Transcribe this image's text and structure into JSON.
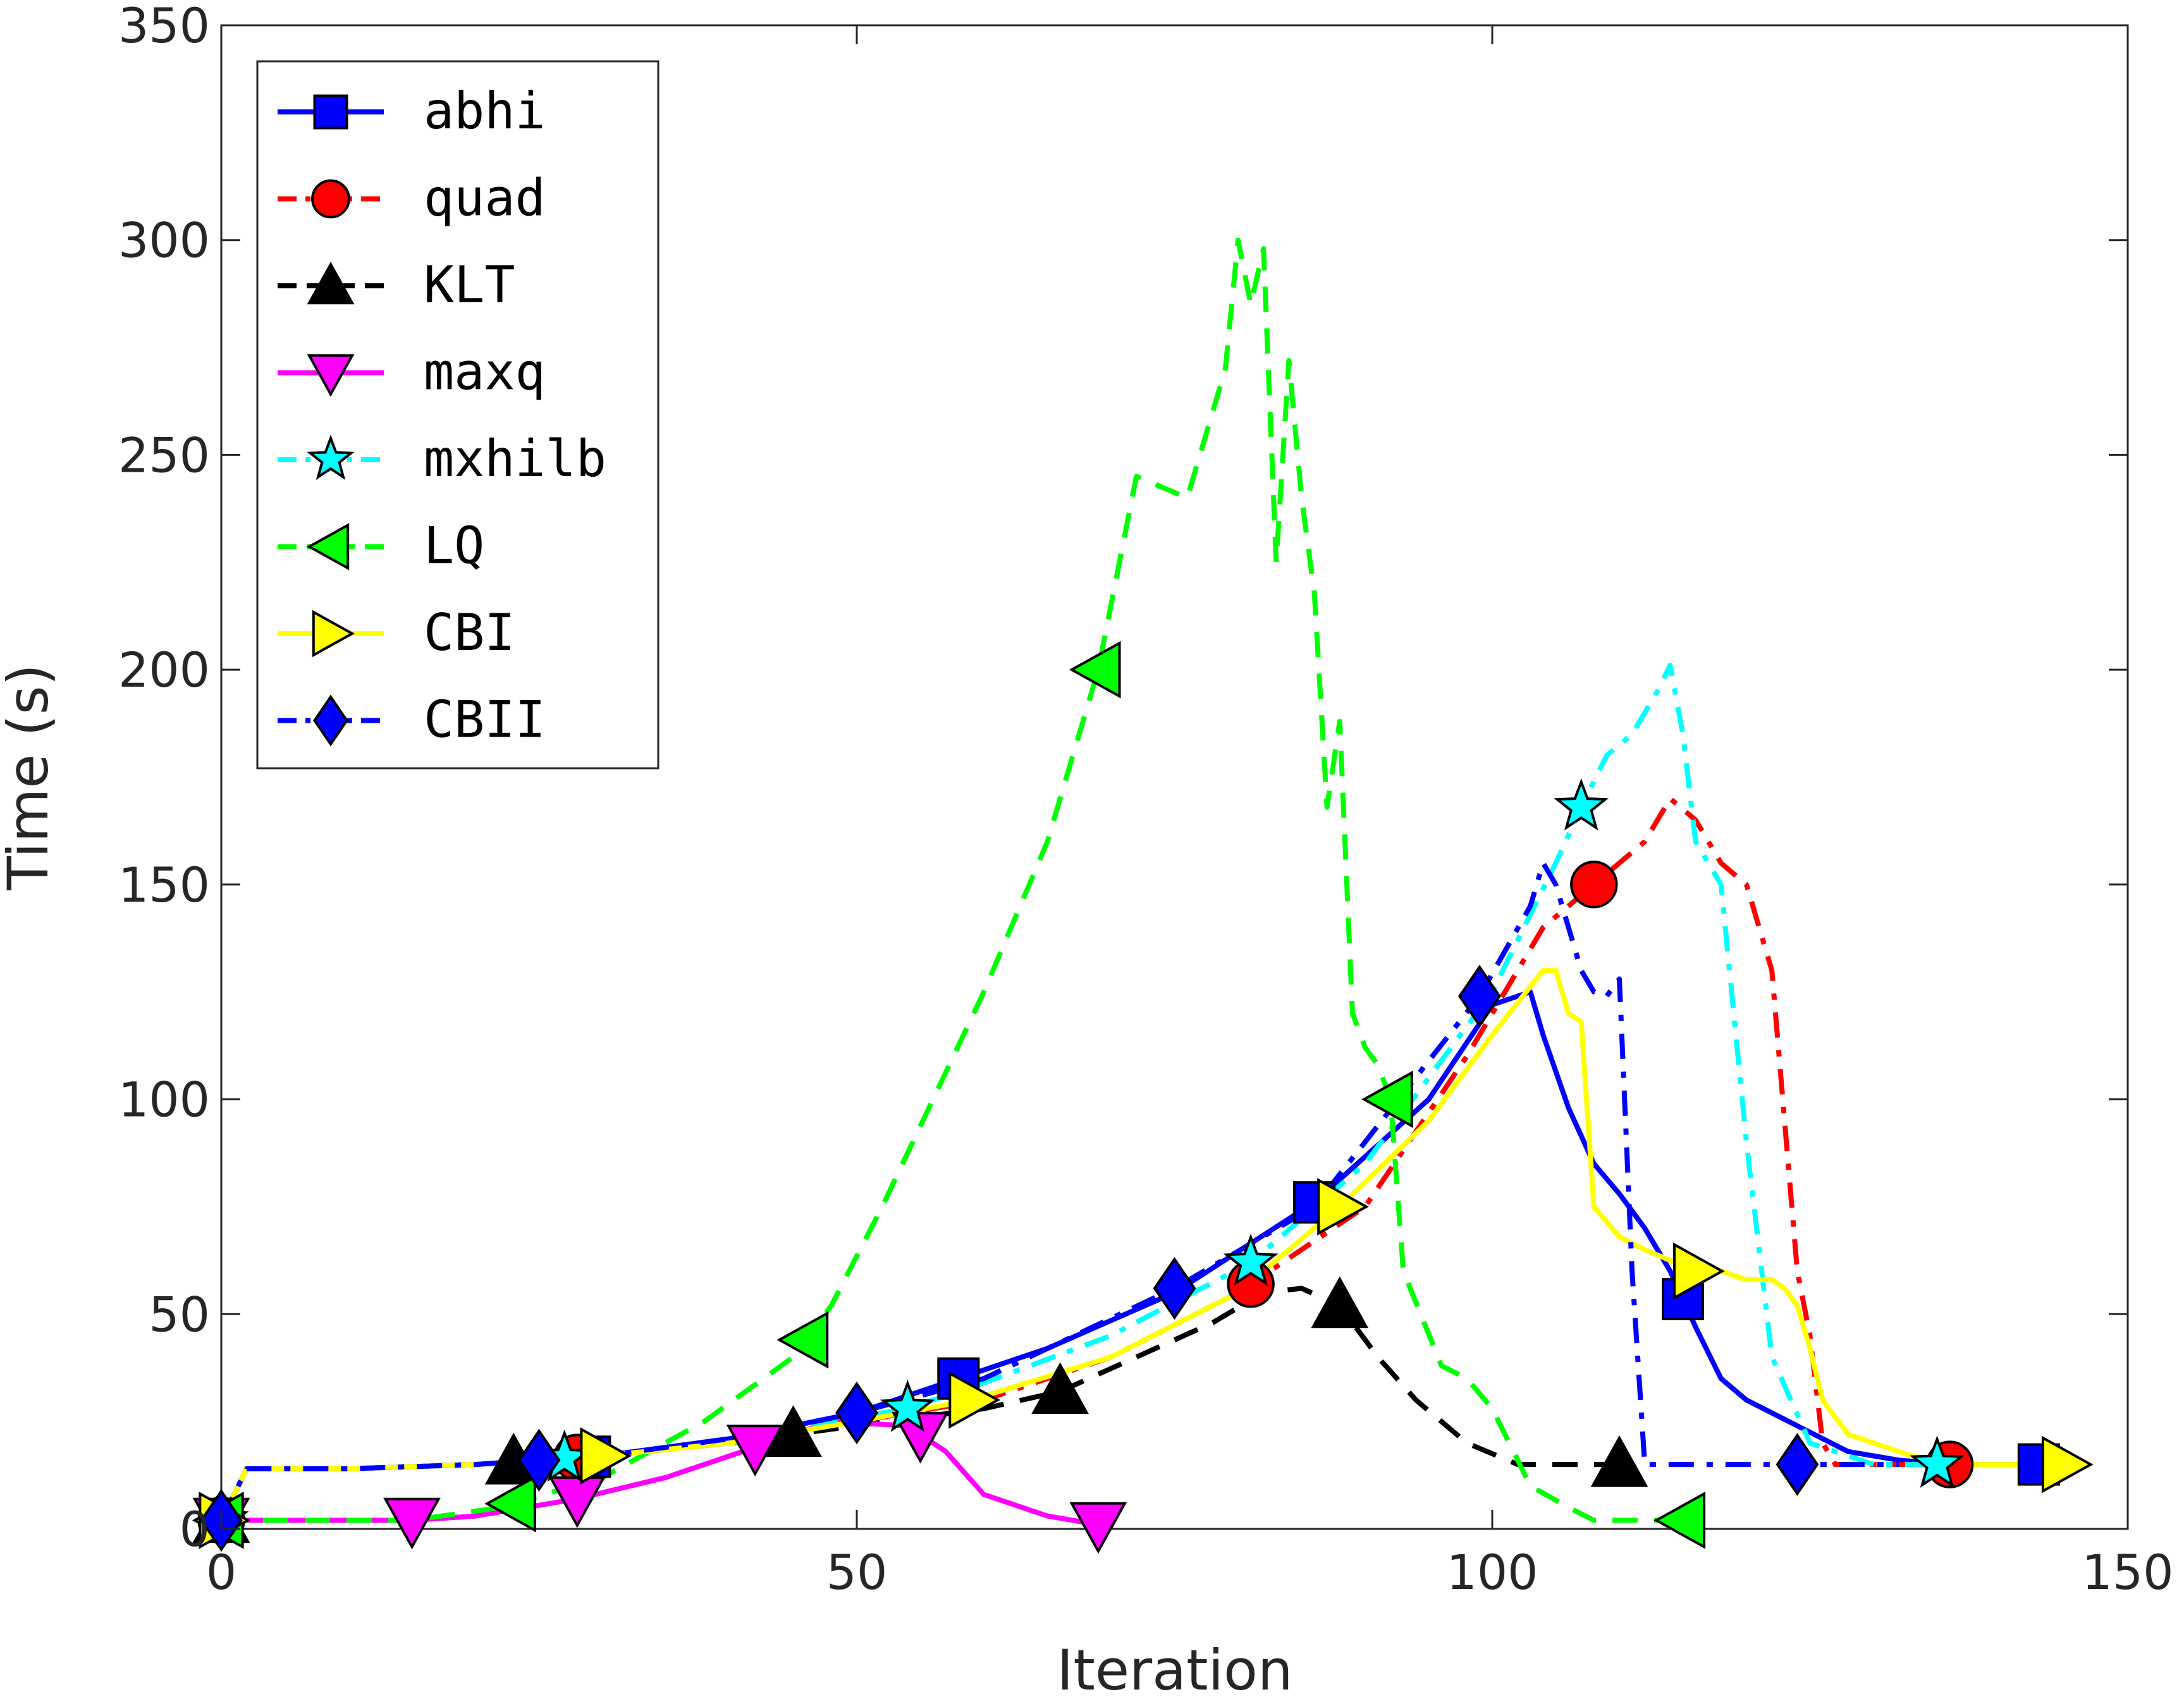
{
  "chart_data": {
    "type": "line",
    "xlabel": "Iteration",
    "ylabel": "Time (s)",
    "xlim": [
      0,
      150
    ],
    "ylim": [
      0,
      350
    ],
    "xticks": [
      0,
      50,
      100,
      150
    ],
    "yticks": [
      0,
      50,
      100,
      150,
      200,
      250,
      300,
      350
    ],
    "grid": false,
    "legend_position": "top-left",
    "series": [
      {
        "name": "abhi",
        "color": "#0000ff",
        "dash": "solid",
        "marker": "square",
        "x": [
          0,
          2,
          10,
          20,
          30,
          40,
          50,
          58,
          65,
          75,
          86,
          95,
          100,
          103,
          104,
          106,
          108,
          110,
          112,
          114,
          116,
          118,
          120,
          124,
          128,
          132,
          136,
          140,
          143
        ],
        "y": [
          2,
          14,
          14,
          15,
          17,
          21,
          27,
          35,
          42,
          55,
          76,
          100,
          122,
          125,
          115,
          98,
          85,
          78,
          70,
          60,
          47,
          35,
          30,
          24,
          18,
          16,
          15,
          15,
          15
        ],
        "markers_x": [
          0,
          29,
          58,
          86,
          115,
          143
        ]
      },
      {
        "name": "quad",
        "color": "#ff0000",
        "dash": "dashdot",
        "marker": "circle",
        "x": [
          0,
          2,
          10,
          20,
          30,
          40,
          50,
          60,
          70,
          80,
          90,
          98,
          104,
          108,
          112,
          114,
          116,
          118,
          120,
          122,
          124,
          125,
          126,
          127,
          130,
          136
        ],
        "y": [
          2,
          14,
          14,
          15,
          17,
          20,
          25,
          30,
          40,
          55,
          75,
          110,
          140,
          150,
          160,
          170,
          165,
          155,
          150,
          130,
          60,
          45,
          20,
          15,
          15,
          15
        ],
        "markers_x": [
          0,
          28,
          81,
          108,
          136
        ]
      },
      {
        "name": "KLT",
        "color": "#000000",
        "dash": "dash",
        "marker": "triangle-up",
        "x": [
          0,
          2,
          10,
          20,
          30,
          40,
          50,
          60,
          66,
          72,
          78,
          82,
          85,
          88,
          91,
          94,
          98,
          102,
          106,
          110
        ],
        "y": [
          2,
          14,
          14,
          15,
          17,
          20,
          24,
          28,
          32,
          40,
          48,
          55,
          56,
          52,
          40,
          30,
          20,
          15,
          15,
          15
        ],
        "markers_x": [
          0,
          23,
          45,
          66,
          88,
          110
        ]
      },
      {
        "name": "maxq",
        "color": "#ff00ff",
        "dash": "solid",
        "marker": "triangle-down",
        "x": [
          0,
          10,
          15,
          20,
          28,
          35,
          42,
          48,
          54,
          57,
          60,
          65,
          69
        ],
        "y": [
          2,
          2,
          2,
          3,
          7,
          12,
          19,
          25,
          24,
          18,
          8,
          3,
          1
        ],
        "markers_x": [
          0,
          15,
          28,
          42,
          55,
          69
        ]
      },
      {
        "name": "mxhilb",
        "color": "#00ffff",
        "dash": "dashdot",
        "marker": "star",
        "x": [
          0,
          2,
          10,
          20,
          30,
          40,
          50,
          54,
          60,
          70,
          81,
          90,
          100,
          105,
          107,
          109,
          111,
          113,
          114,
          115,
          116,
          118,
          120,
          122,
          125,
          130,
          135
        ],
        "y": [
          2,
          14,
          14,
          15,
          17,
          21,
          26,
          28,
          34,
          45,
          62,
          85,
          125,
          155,
          168,
          180,
          185,
          195,
          201,
          185,
          160,
          150,
          90,
          40,
          20,
          15,
          15
        ],
        "markers_x": [
          0,
          27,
          54,
          81,
          107,
          135
        ]
      },
      {
        "name": "LQ",
        "color": "#00ff00",
        "dash": "dash",
        "marker": "triangle-left",
        "x": [
          0,
          15,
          22,
          30,
          38,
          45,
          48,
          52,
          56,
          60,
          65,
          69,
          72,
          76,
          79,
          80,
          81,
          82,
          83,
          84,
          85,
          86,
          87,
          88,
          89,
          90,
          91,
          92,
          93,
          96,
          98,
          100,
          103,
          106,
          108,
          110,
          112,
          115
        ],
        "y": [
          2,
          2,
          5,
          12,
          25,
          40,
          52,
          75,
          100,
          125,
          160,
          200,
          245,
          240,
          270,
          300,
          285,
          298,
          225,
          272,
          240,
          218,
          168,
          188,
          120,
          112,
          108,
          100,
          60,
          38,
          35,
          28,
          10,
          5,
          2,
          2,
          2,
          2
        ],
        "markers_x": [
          0,
          23,
          46,
          69,
          92,
          115
        ]
      },
      {
        "name": "CBI",
        "color": "#ffff00",
        "dash": "solid",
        "marker": "triangle-right",
        "x": [
          0,
          2,
          10,
          20,
          30,
          40,
          50,
          59,
          70,
          80,
          88,
          95,
          100,
          104,
          105,
          106,
          107,
          108,
          110,
          112,
          116,
          118,
          120,
          122,
          123,
          124,
          125,
          126,
          128,
          130,
          133,
          136,
          140,
          145
        ],
        "y": [
          2,
          14,
          14,
          15,
          17,
          20,
          25,
          30,
          40,
          55,
          75,
          95,
          115,
          130,
          130,
          120,
          118,
          75,
          68,
          65,
          60,
          60,
          58,
          58,
          56,
          52,
          42,
          30,
          22,
          20,
          17,
          15,
          15,
          15
        ],
        "markers_x": [
          0,
          30,
          59,
          88,
          116,
          145
        ]
      },
      {
        "name": "CBII",
        "color": "#0000ff",
        "dash": "dashdot",
        "marker": "diamond",
        "x": [
          0,
          2,
          10,
          20,
          30,
          40,
          50,
          60,
          75,
          86,
          99,
          103,
          104,
          105,
          106,
          107,
          108,
          109,
          110,
          111,
          112,
          114,
          116,
          118,
          120,
          124,
          128,
          132
        ],
        "y": [
          2,
          14,
          14,
          15,
          17,
          21,
          27,
          35,
          56,
          75,
          124,
          145,
          155,
          150,
          140,
          130,
          125,
          124,
          128,
          60,
          15,
          15,
          15,
          15,
          15,
          15,
          15,
          15
        ],
        "markers_x": [
          0,
          25,
          50,
          75,
          99,
          124
        ]
      }
    ]
  }
}
